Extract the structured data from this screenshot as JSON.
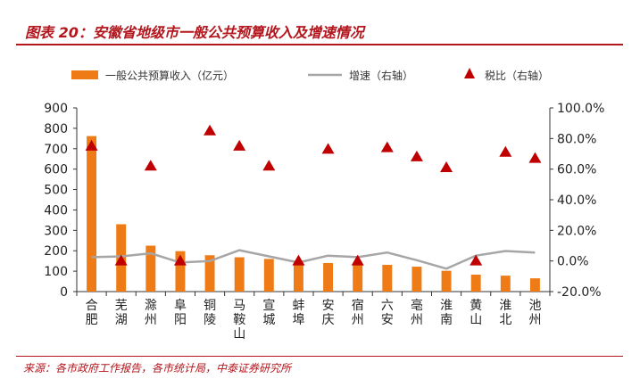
{
  "header": {
    "title": "图表 20：安徽省地级市一般公共预算收入及增速情况"
  },
  "footer": {
    "source": "来源：各市政府工作报告，各市统计局，中泰证券研究所"
  },
  "colors": {
    "bar": "#ee7b16",
    "growth_line": "#a6a6a6",
    "tax_marker": "#c00000",
    "title": "#b3161d"
  },
  "chart_data": {
    "type": "bar",
    "categories": [
      "合肥",
      "芜湖",
      "滁州",
      "阜阳",
      "铜陵",
      "马鞍山",
      "宣城",
      "蚌埠",
      "安庆",
      "宿州",
      "六安",
      "亳州",
      "淮南",
      "黄山",
      "淮北",
      "池州"
    ],
    "series": [
      {
        "name": "一般公共预算收入（亿元）",
        "type": "bar",
        "axis": "left",
        "values": [
          762,
          330,
          225,
          198,
          178,
          168,
          160,
          137,
          140,
          138,
          131,
          122,
          102,
          83,
          78,
          65
        ]
      },
      {
        "name": "增速（右轴）",
        "type": "line",
        "axis": "right",
        "values": [
          2.5,
          3.0,
          5.0,
          -1.0,
          0.0,
          7.0,
          3.0,
          -1.0,
          3.5,
          2.5,
          5.5,
          0.5,
          -5.0,
          3.5,
          6.5,
          5.5
        ]
      },
      {
        "name": "税比（右轴）",
        "type": "scatter",
        "axis": "right",
        "values": [
          75,
          0,
          62,
          0,
          85,
          75,
          62,
          0,
          73,
          0,
          74,
          68,
          61,
          0,
          71,
          67
        ]
      }
    ],
    "left_axis": {
      "min": 0,
      "max": 900,
      "step": 100,
      "ticks": [
        "0",
        "100",
        "200",
        "300",
        "400",
        "500",
        "600",
        "700",
        "800",
        "900"
      ]
    },
    "right_axis": {
      "min": -20,
      "max": 100,
      "step": 20,
      "ticks": [
        "-20.0%",
        "0.0%",
        "20.0%",
        "40.0%",
        "60.0%",
        "80.0%",
        "100.0%"
      ]
    },
    "legend_position": "top",
    "grid": false
  }
}
